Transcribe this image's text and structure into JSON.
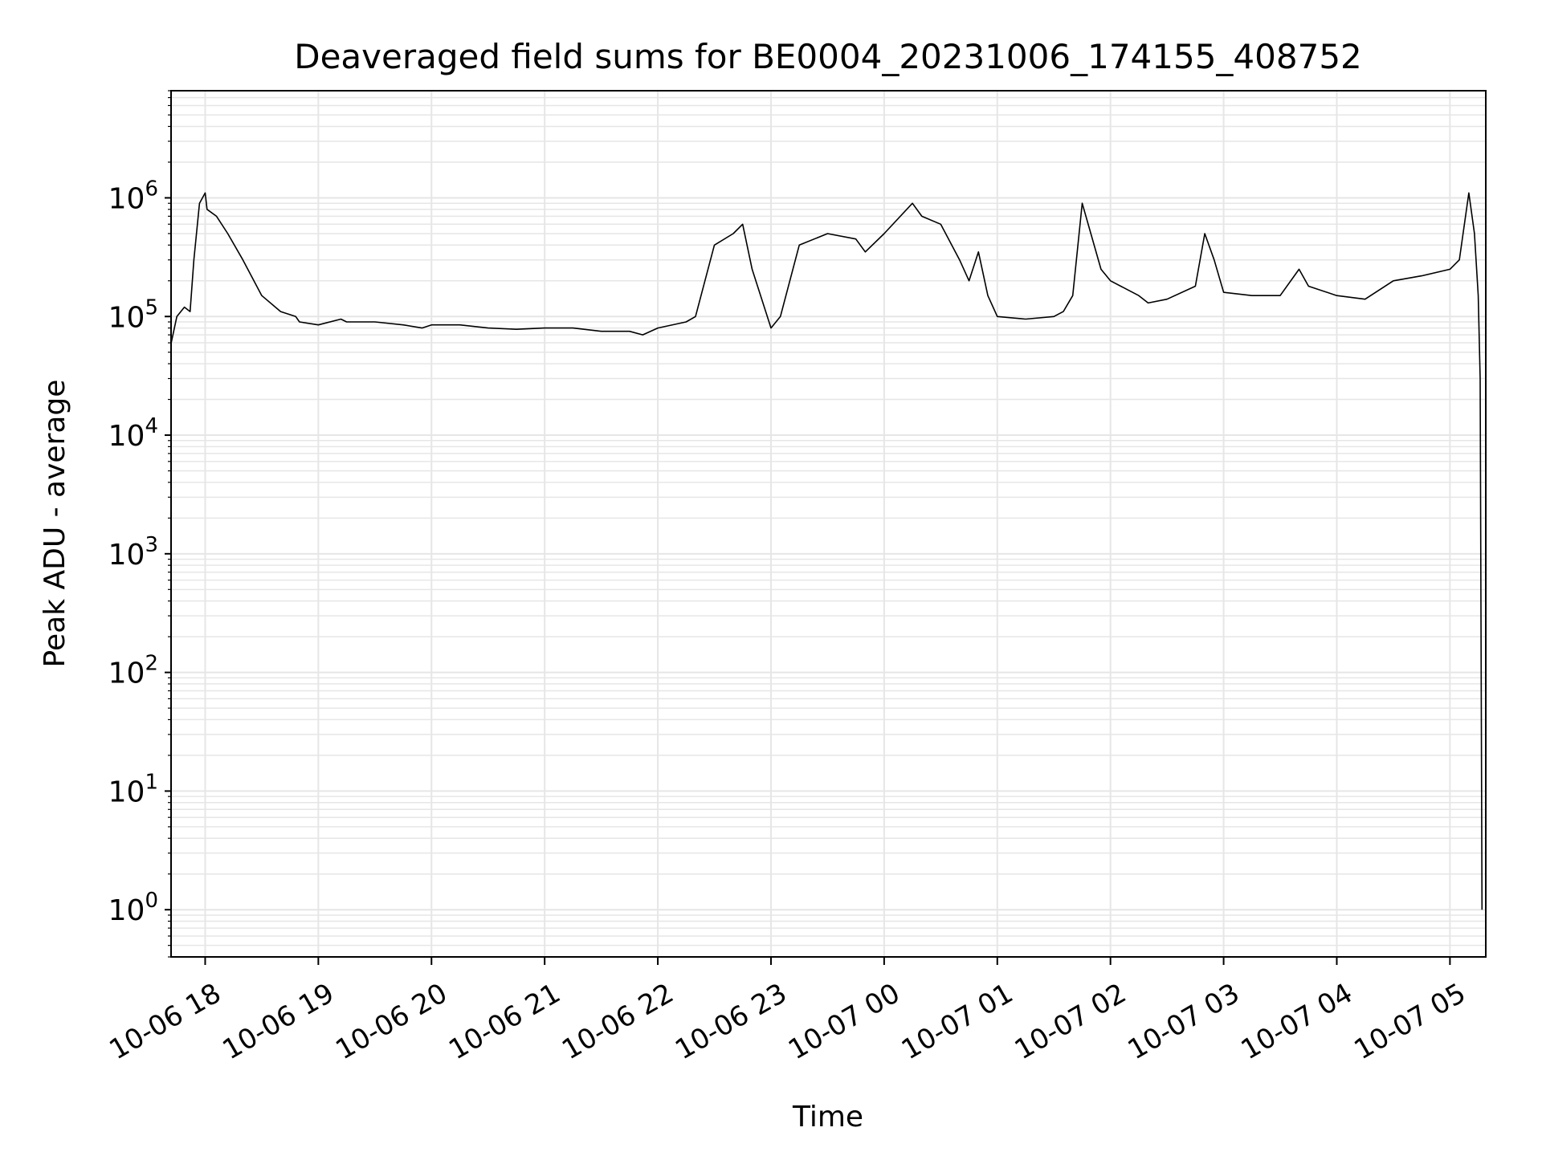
{
  "chart_data": {
    "type": "line",
    "title": "Deaveraged field sums for BE0004_20231006_174155_408752",
    "xlabel": "Time",
    "ylabel": "Peak ADU - average",
    "y_scale": "log",
    "y_ticks": [
      {
        "base": "10",
        "exp": "0",
        "value": 1
      },
      {
        "base": "10",
        "exp": "1",
        "value": 10
      },
      {
        "base": "10",
        "exp": "2",
        "value": 100
      },
      {
        "base": "10",
        "exp": "3",
        "value": 1000
      },
      {
        "base": "10",
        "exp": "4",
        "value": 10000
      },
      {
        "base": "10",
        "exp": "5",
        "value": 100000
      },
      {
        "base": "10",
        "exp": "6",
        "value": 1000000
      }
    ],
    "x_tick_labels": [
      "10-06 18",
      "10-06 19",
      "10-06 20",
      "10-06 21",
      "10-06 22",
      "10-06 23",
      "10-07 00",
      "10-07 01",
      "10-07 02",
      "10-07 03",
      "10-07 04",
      "10-07 05"
    ],
    "xlim": [
      "2023-10-06 17:41:55",
      "2023-10-07 05:19:00"
    ],
    "ylim": [
      0.4,
      8000000
    ],
    "grid": true,
    "line_color": "#000000",
    "grid_color": "#e6e6e6",
    "series": [
      {
        "x": [
          "2023-10-06 17:42",
          "2023-10-06 17:45",
          "2023-10-06 17:49",
          "2023-10-06 17:52",
          "2023-10-06 17:54",
          "2023-10-06 17:57",
          "2023-10-06 18:00",
          "2023-10-06 18:01",
          "2023-10-06 18:06",
          "2023-10-06 18:12",
          "2023-10-06 18:20",
          "2023-10-06 18:30",
          "2023-10-06 18:40",
          "2023-10-06 18:48",
          "2023-10-06 18:50",
          "2023-10-06 19:00",
          "2023-10-06 19:12",
          "2023-10-06 19:15",
          "2023-10-06 19:30",
          "2023-10-06 19:45",
          "2023-10-06 19:55",
          "2023-10-06 20:00",
          "2023-10-06 20:15",
          "2023-10-06 20:30",
          "2023-10-06 20:45",
          "2023-10-06 21:00",
          "2023-10-06 21:15",
          "2023-10-06 21:30",
          "2023-10-06 21:45",
          "2023-10-06 21:52",
          "2023-10-06 22:00",
          "2023-10-06 22:15",
          "2023-10-06 22:20",
          "2023-10-06 22:30",
          "2023-10-06 22:40",
          "2023-10-06 22:45",
          "2023-10-06 22:50",
          "2023-10-06 23:00",
          "2023-10-06 23:05",
          "2023-10-06 23:15",
          "2023-10-06 23:30",
          "2023-10-06 23:45",
          "2023-10-06 23:50",
          "2023-10-07 00:00",
          "2023-10-07 00:15",
          "2023-10-07 00:20",
          "2023-10-07 00:30",
          "2023-10-07 00:40",
          "2023-10-07 00:45",
          "2023-10-07 00:50",
          "2023-10-07 00:55",
          "2023-10-07 01:00",
          "2023-10-07 01:15",
          "2023-10-07 01:30",
          "2023-10-07 01:35",
          "2023-10-07 01:40",
          "2023-10-07 01:45",
          "2023-10-07 01:55",
          "2023-10-07 02:00",
          "2023-10-07 02:15",
          "2023-10-07 02:20",
          "2023-10-07 02:30",
          "2023-10-07 02:45",
          "2023-10-07 02:50",
          "2023-10-07 02:55",
          "2023-10-07 03:00",
          "2023-10-07 03:15",
          "2023-10-07 03:30",
          "2023-10-07 03:40",
          "2023-10-07 03:45",
          "2023-10-07 04:00",
          "2023-10-07 04:15",
          "2023-10-07 04:30",
          "2023-10-07 04:45",
          "2023-10-07 05:00",
          "2023-10-07 05:05",
          "2023-10-07 05:10",
          "2023-10-07 05:13",
          "2023-10-07 05:15",
          "2023-10-07 05:16",
          "2023-10-07 05:17"
        ],
        "y": [
          60000,
          100000,
          120000,
          110000,
          300000,
          900000,
          1100000,
          800000,
          700000,
          500000,
          300000,
          150000,
          110000,
          100000,
          90000,
          85000,
          95000,
          90000,
          90000,
          85000,
          80000,
          85000,
          85000,
          80000,
          78000,
          80000,
          80000,
          75000,
          75000,
          70000,
          80000,
          90000,
          100000,
          400000,
          500000,
          600000,
          250000,
          80000,
          100000,
          400000,
          500000,
          450000,
          350000,
          500000,
          900000,
          700000,
          600000,
          300000,
          200000,
          350000,
          150000,
          100000,
          95000,
          100000,
          110000,
          150000,
          900000,
          250000,
          200000,
          150000,
          130000,
          140000,
          180000,
          500000,
          300000,
          160000,
          150000,
          150000,
          250000,
          180000,
          150000,
          140000,
          200000,
          220000,
          250000,
          300000,
          1100000,
          500000,
          150000,
          30000,
          1
        ]
      }
    ]
  }
}
